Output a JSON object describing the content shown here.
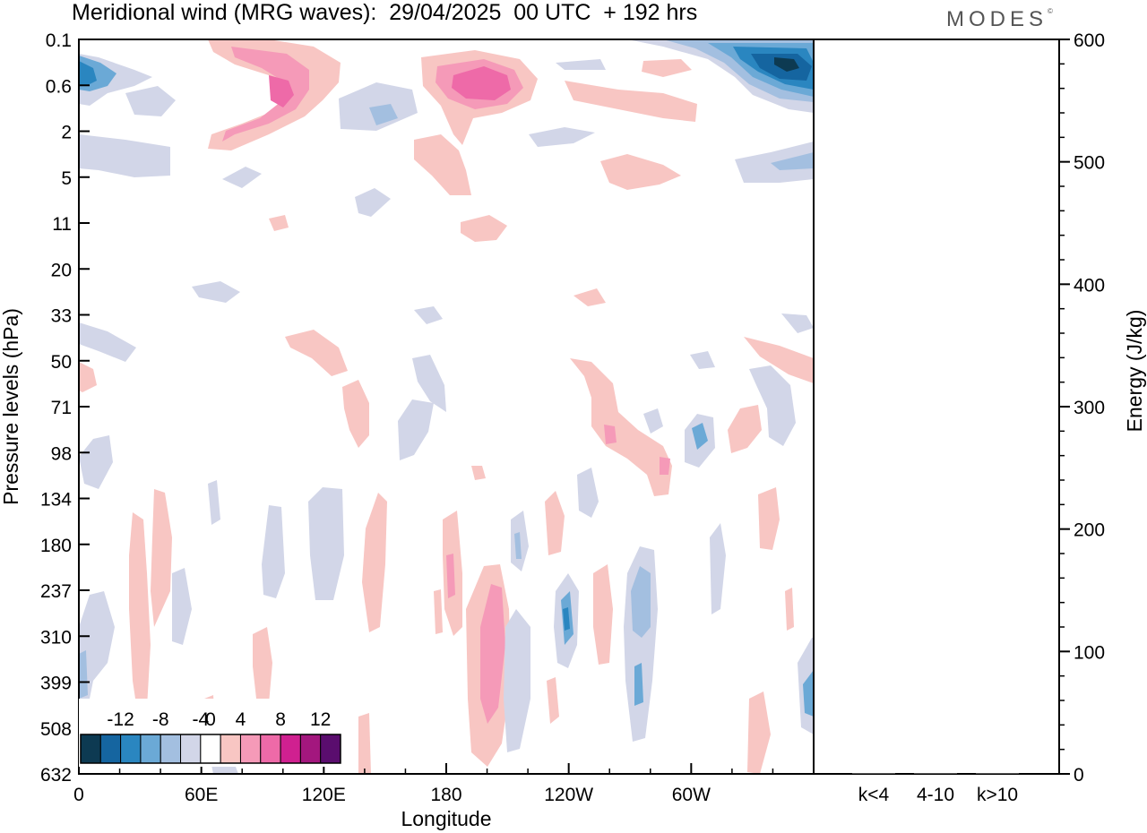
{
  "header": {
    "title": "Meridional wind (MRG waves):  29/04/2025  00 UTC  + 192 hrs",
    "brand": "MODES",
    "brand_mark": "©"
  },
  "chart_data": [
    {
      "type": "heatmap",
      "title": "Meridional wind (MRG waves):  29/04/2025  00 UTC  + 192 hrs",
      "xlabel": "Longitude",
      "ylabel": "Pressure levels (hPa)",
      "x_ticks": [
        "0",
        "60E",
        "120E",
        "180",
        "120W",
        "60W"
      ],
      "x_tick_degrees_east": [
        0,
        60,
        120,
        180,
        240,
        300
      ],
      "xlim_degrees_east": [
        0,
        360
      ],
      "y_ticks": [
        "0.1",
        "0.6",
        "2",
        "5",
        "11",
        "20",
        "33",
        "50",
        "71",
        "98",
        "134",
        "180",
        "237",
        "310",
        "399",
        "508",
        "632"
      ],
      "y_order": "top-to-bottom",
      "colorbar": {
        "labels": [
          "-12",
          "-8",
          "-4",
          "0",
          "4",
          "8",
          "12"
        ],
        "levels": [
          -14,
          -12,
          -10,
          -8,
          -6,
          -4,
          -2,
          2,
          4,
          6,
          8,
          10,
          12,
          14
        ],
        "colors": [
          "#0d3a52",
          "#1565a0",
          "#2a86c0",
          "#6ba9d6",
          "#a3bfe0",
          "#d2d6e8",
          "#ffffff",
          "#f8c6c3",
          "#f59ab8",
          "#ee6aa8",
          "#d02090",
          "#a3177e",
          "#5a0d6e"
        ]
      },
      "features": [
        {
          "sign": "positive",
          "level": 4,
          "lon": 75,
          "lev": "0.6",
          "label": "upper pink ridge"
        },
        {
          "sign": "positive",
          "level": 8,
          "lon": 190,
          "lev": "0.6",
          "label": "pink core near 180"
        },
        {
          "sign": "negative",
          "level": -12,
          "lon": 350,
          "lev": "0.6",
          "label": "blue core near 0 / 360"
        },
        {
          "sign": "positive",
          "level": 6,
          "lon": 195,
          "lev": "399",
          "label": "lower pink column"
        },
        {
          "sign": "negative",
          "level": -6,
          "lon": 275,
          "lev": "310",
          "label": "lower blue column"
        }
      ]
    },
    {
      "type": "bar",
      "xlabel": "",
      "ylabel": "Energy (J/kg)",
      "categories": [
        "k<4",
        "4-10",
        "k>10"
      ],
      "values": [
        0,
        0,
        0
      ],
      "ylim": [
        0,
        600
      ],
      "y_ticks": [
        "0",
        "100",
        "200",
        "300",
        "400",
        "500",
        "600"
      ]
    }
  ]
}
